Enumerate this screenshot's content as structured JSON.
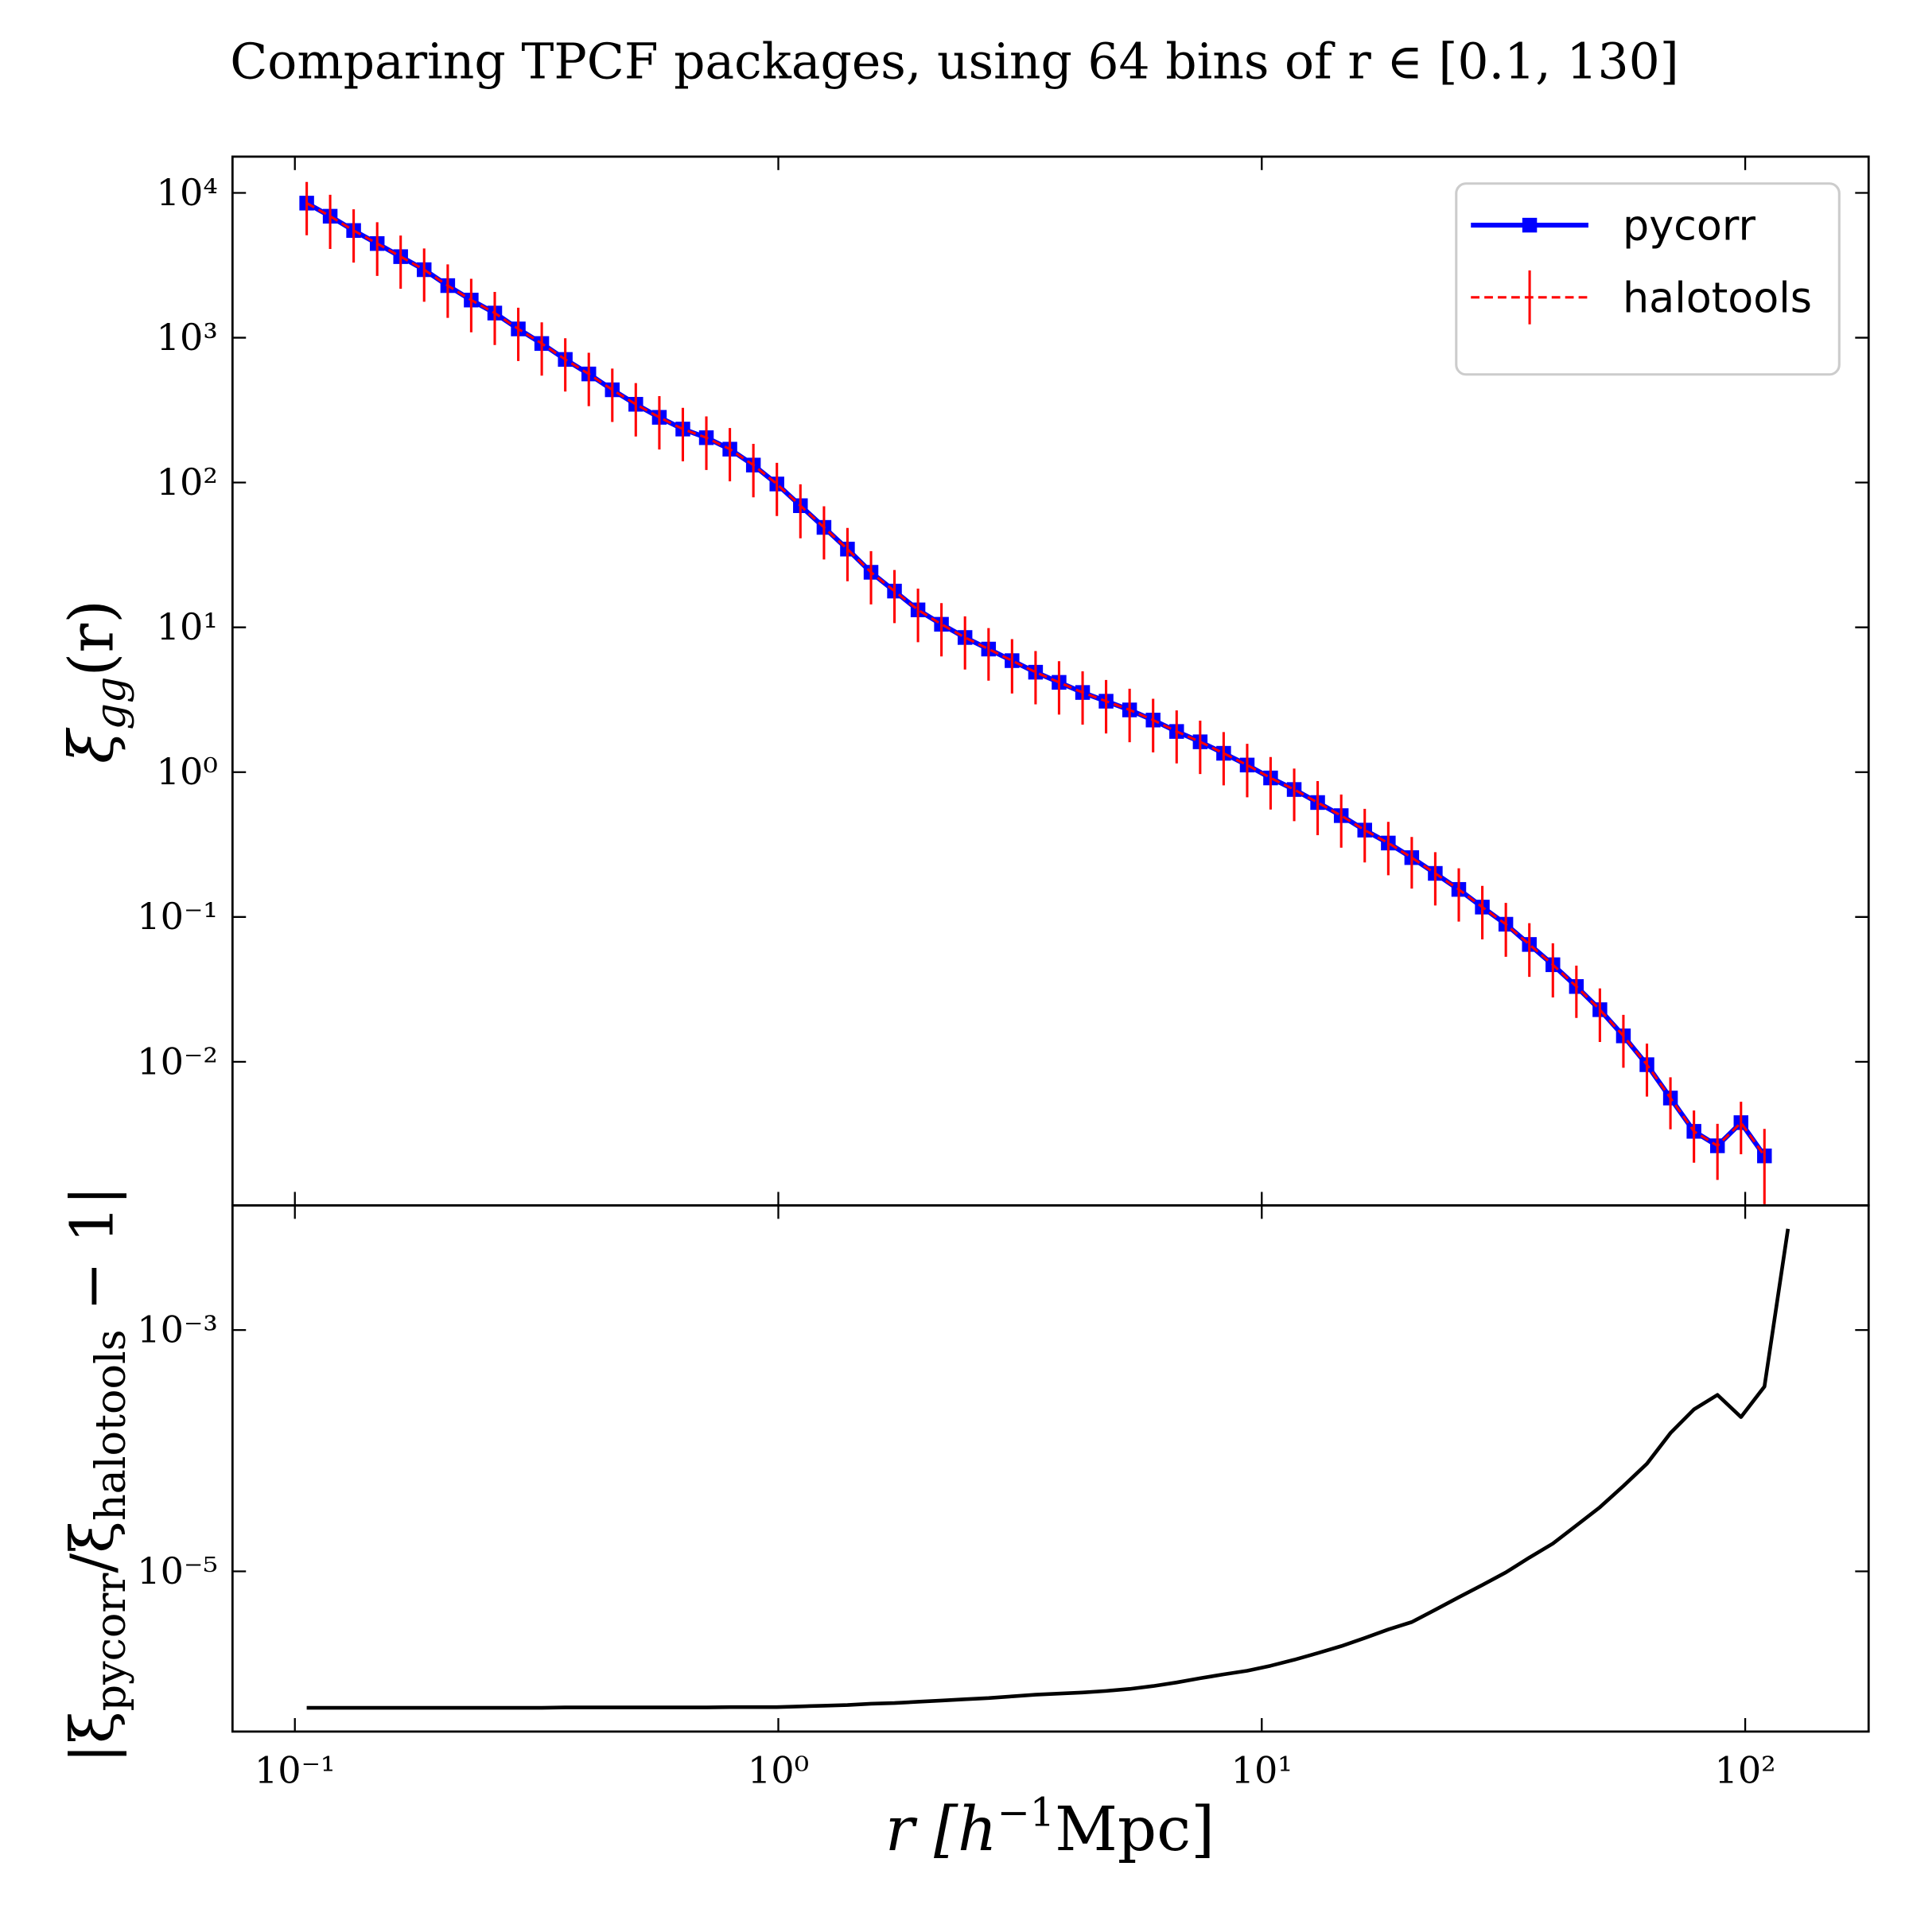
{
  "chart_data": [
    {
      "type": "line",
      "title": "Comparing TPCF packages, using 64 bins of r ∈ [0.1, 130]",
      "ylabel": [
        "ξ",
        "gg",
        "(r)"
      ],
      "xscale": "log",
      "yscale": "log",
      "xlim": [
        0.0743,
        180
      ],
      "ylim": [
        0.00102,
        17800
      ],
      "xticks": [
        0.1,
        1,
        10,
        100
      ],
      "xtick_labels": false,
      "yticks": [
        {
          "value": 0.01,
          "label": "10⁻²"
        },
        {
          "value": 0.1,
          "label": "10⁻¹"
        },
        {
          "value": 1,
          "label": "10⁰"
        },
        {
          "value": 10,
          "label": "10¹"
        },
        {
          "value": 100,
          "label": "10²"
        },
        {
          "value": 1000,
          "label": "10³"
        },
        {
          "value": 10000,
          "label": "10⁴"
        }
      ],
      "legend": "upper right",
      "x": [
        0.1058,
        0.1183,
        0.1323,
        0.148,
        0.1655,
        0.1851,
        0.2071,
        0.2316,
        0.2591,
        0.2898,
        0.3241,
        0.3625,
        0.4055,
        0.4535,
        0.5072,
        0.5674,
        0.6346,
        0.7098,
        0.7939,
        0.888,
        0.9932,
        1.111,
        1.243,
        1.39,
        1.555,
        1.739,
        1.945,
        2.175,
        2.433,
        2.722,
        3.044,
        3.405,
        3.808,
        4.26,
        4.764,
        5.329,
        5.96,
        6.667,
        7.457,
        8.34,
        9.329,
        10.43,
        11.67,
        13.05,
        14.6,
        16.33,
        18.27,
        20.43,
        22.85,
        25.56,
        28.59,
        31.98,
        35.77,
        40.01,
        44.75,
        50.05,
        55.98,
        62.62,
        70.04,
        78.34,
        87.62,
        98.01,
        109.6,
        122.6
      ],
      "series": [
        {
          "name": "pycorr",
          "color": "#0000ff",
          "linestyle": "solid",
          "marker": "s",
          "values": [
            8500,
            6900,
            5500,
            4470,
            3630,
            2950,
            2290,
            1820,
            1480,
            1150,
            912,
            708,
            562,
            437,
            347,
            282,
            234,
            204,
            170,
            132,
            97.7,
            69.2,
            49.0,
            34.7,
            24.0,
            17.8,
            13.2,
            10.5,
            8.51,
            7.08,
            5.89,
            4.9,
            4.17,
            3.55,
            3.09,
            2.69,
            2.29,
            1.91,
            1.62,
            1.35,
            1.12,
            0.912,
            0.759,
            0.617,
            0.501,
            0.398,
            0.324,
            0.257,
            0.2,
            0.155,
            0.117,
            0.0891,
            0.0646,
            0.0468,
            0.0331,
            0.0229,
            0.0151,
            0.00955,
            0.00562,
            0.00331,
            0.00263,
            0.0038,
            0.00224,
            null
          ]
        },
        {
          "name": "halotools",
          "color": "#ff0000",
          "linestyle": "dashed",
          "values": [
            8500,
            6900,
            5500,
            4470,
            3630,
            2950,
            2290,
            1820,
            1480,
            1150,
            912,
            708,
            562,
            437,
            347,
            282,
            234,
            204,
            170,
            132,
            97.7,
            69.2,
            49.0,
            34.7,
            24.0,
            17.8,
            13.2,
            10.5,
            8.51,
            7.08,
            5.89,
            4.9,
            4.17,
            3.55,
            3.09,
            2.69,
            2.29,
            1.91,
            1.62,
            1.35,
            1.12,
            0.912,
            0.759,
            0.617,
            0.501,
            0.398,
            0.324,
            0.257,
            0.2,
            0.155,
            0.117,
            0.0891,
            0.0646,
            0.0468,
            0.0331,
            0.0229,
            0.0151,
            0.00955,
            0.00562,
            0.00331,
            0.00263,
            0.0038,
            0.00224,
            null
          ],
          "errors": [
            3400,
            2800,
            2200,
            1800,
            1450,
            1180,
            920,
            730,
            590,
            460,
            365,
            283,
            225,
            175,
            139,
            113,
            94,
            82,
            68,
            53,
            39,
            28,
            19.6,
            13.9,
            9.6,
            7.1,
            5.3,
            4.2,
            3.4,
            2.8,
            2.4,
            1.96,
            1.67,
            1.42,
            1.24,
            1.08,
            0.92,
            0.76,
            0.65,
            0.54,
            0.45,
            0.36,
            0.3,
            0.25,
            0.2,
            0.16,
            0.13,
            0.1,
            0.08,
            0.062,
            0.047,
            0.036,
            0.026,
            0.019,
            0.013,
            0.0092,
            0.006,
            0.0038,
            0.0022,
            0.0013,
            0.0011,
            0.0015,
            0.0012,
            null
          ]
        }
      ]
    },
    {
      "type": "line",
      "ylabel": [
        "|ξ",
        "pycorr",
        "/ξ",
        "halotools",
        " − 1|"
      ],
      "xlabel": [
        "r [h",
        "−1",
        "Mpc]"
      ],
      "xscale": "log",
      "yscale": "log",
      "xlim": [
        0.0743,
        180
      ],
      "ylim": [
        4.7e-07,
        0.0108
      ],
      "xticks": [
        {
          "value": 0.1,
          "label": "10⁻¹"
        },
        {
          "value": 1,
          "label": "10⁰"
        },
        {
          "value": 10,
          "label": "10¹"
        },
        {
          "value": 100,
          "label": "10²"
        }
      ],
      "yticks": [
        {
          "value": 1e-05,
          "label": "10⁻⁵"
        },
        {
          "value": 0.001,
          "label": "10⁻³"
        }
      ],
      "x": [
        0.1058,
        0.1183,
        0.1323,
        0.148,
        0.1655,
        0.1851,
        0.2071,
        0.2316,
        0.2591,
        0.2898,
        0.3241,
        0.3625,
        0.4055,
        0.4535,
        0.5072,
        0.5674,
        0.6346,
        0.7098,
        0.7939,
        0.888,
        0.9932,
        1.111,
        1.243,
        1.39,
        1.555,
        1.739,
        1.945,
        2.175,
        2.433,
        2.722,
        3.044,
        3.405,
        3.808,
        4.26,
        4.764,
        5.329,
        5.96,
        6.667,
        7.457,
        8.34,
        9.329,
        10.43,
        11.67,
        13.05,
        14.6,
        16.33,
        18.27,
        20.43,
        22.85,
        25.56,
        28.59,
        31.98,
        35.77,
        40.01,
        44.75,
        50.05,
        55.98,
        62.62,
        70.04,
        78.34,
        87.62,
        98.01,
        109.6,
        122.6
      ],
      "series": [
        {
          "color": "#000000",
          "linestyle": "solid",
          "values": [
            7.4e-07,
            7.4e-07,
            7.4e-07,
            7.4e-07,
            7.4e-07,
            7.4e-07,
            7.4e-07,
            7.4e-07,
            7.4e-07,
            7.4e-07,
            7.4e-07,
            7.45e-07,
            7.45e-07,
            7.45e-07,
            7.45e-07,
            7.45e-07,
            7.45e-07,
            7.45e-07,
            7.5e-07,
            7.5e-07,
            7.5e-07,
            7.6e-07,
            7.7e-07,
            7.8e-07,
            8e-07,
            8.1e-07,
            8.3e-07,
            8.5e-07,
            8.7e-07,
            8.9e-07,
            9.2e-07,
            9.5e-07,
            9.7e-07,
            9.9e-07,
            1.02e-06,
            1.06e-06,
            1.12e-06,
            1.2e-06,
            1.3e-06,
            1.4e-06,
            1.5e-06,
            1.65e-06,
            1.85e-06,
            2.1e-06,
            2.4e-06,
            2.8e-06,
            3.3e-06,
            3.8e-06,
            4.8e-06,
            6.1e-06,
            7.7e-06,
            9.8e-06,
            1.3e-05,
            1.7e-05,
            2.4e-05,
            3.4e-05,
            5.1e-05,
            7.8e-05,
            0.00014,
            0.00022,
            0.00029,
            0.00019,
            0.00034,
            0.0069
          ]
        }
      ]
    }
  ]
}
